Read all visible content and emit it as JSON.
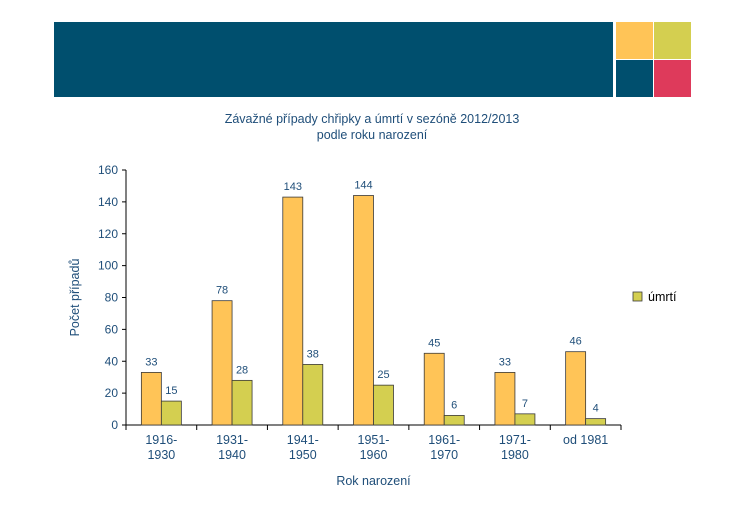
{
  "header": {
    "banner_color": "#004f6e",
    "squares": [
      "#ffc457",
      "#d4cf50",
      "#004f6e",
      "#de3a5b"
    ]
  },
  "chart_data": {
    "type": "bar",
    "title": "Závažné případy chřipky a úmrtí v sezóně 2012/2013",
    "subtitle": "podle roku narození",
    "xlabel": "Rok narození",
    "ylabel": "Počet případů",
    "ylim": [
      0,
      160
    ],
    "yticks": [
      "0",
      "20",
      "40",
      "60",
      "80",
      "100",
      "120",
      "140",
      "160"
    ],
    "categories": [
      [
        "1916-",
        "1930"
      ],
      [
        "1931-",
        "1940"
      ],
      [
        "1941-",
        "1950"
      ],
      [
        "1951-",
        "1960"
      ],
      [
        "1961-",
        "1970"
      ],
      [
        "1971-",
        "1980"
      ],
      [
        "od 1981",
        ""
      ]
    ],
    "series": [
      {
        "values": [
          33,
          78,
          143,
          144,
          45,
          33,
          46
        ],
        "color": "#ffc457",
        "labels": [
          "33",
          "78",
          "143",
          "144",
          "45",
          "33",
          "46"
        ]
      },
      {
        "name": "úmrtí",
        "values": [
          15,
          28,
          38,
          25,
          6,
          7,
          4
        ],
        "color": "#d4cf50",
        "labels": [
          "15",
          "28",
          "38",
          "25",
          "6",
          "7",
          "4"
        ]
      }
    ],
    "legend_position": "right",
    "grid": false
  }
}
